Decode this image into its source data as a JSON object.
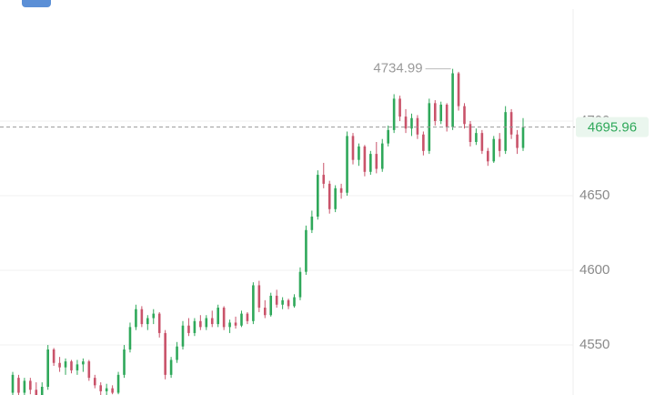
{
  "chart_data": {
    "type": "candlestick",
    "ylim": [
      4516.5,
      4781.1
    ],
    "yticks": [
      4550,
      4600,
      4650,
      4700
    ],
    "grid": true,
    "up_color": "#2fa85a",
    "down_color": "#c9536a",
    "ohlc": [
      [
        4518,
        4532,
        4515,
        4530
      ],
      [
        4528,
        4530,
        4516,
        4518
      ],
      [
        4518,
        4528,
        4515,
        4526
      ],
      [
        4526,
        4528,
        4517,
        4520
      ],
      [
        4520,
        4525,
        4514,
        4516
      ],
      [
        4516,
        4525,
        4514,
        4522
      ],
      [
        4522,
        4550,
        4520,
        4547
      ],
      [
        4547,
        4548,
        4536,
        4538
      ],
      [
        4538,
        4542,
        4532,
        4535
      ],
      [
        4535,
        4541,
        4530,
        4539
      ],
      [
        4539,
        4540,
        4531,
        4533
      ],
      [
        4533,
        4540,
        4530,
        4537
      ],
      [
        4537,
        4541,
        4532,
        4539
      ],
      [
        4539,
        4540,
        4526,
        4528
      ],
      [
        4528,
        4530,
        4521,
        4523
      ],
      [
        4523,
        4525,
        4516,
        4519
      ],
      [
        4519,
        4524,
        4516,
        4521
      ],
      [
        4521,
        4523,
        4517,
        4518
      ],
      [
        4518,
        4532,
        4517,
        4530
      ],
      [
        4530,
        4550,
        4528,
        4547
      ],
      [
        4547,
        4565,
        4545,
        4562
      ],
      [
        4562,
        4577,
        4560,
        4574
      ],
      [
        4574,
        4576,
        4562,
        4564
      ],
      [
        4564,
        4570,
        4560,
        4568
      ],
      [
        4568,
        4574,
        4564,
        4571
      ],
      [
        4571,
        4572,
        4555,
        4558
      ],
      [
        4558,
        4560,
        4527,
        4530
      ],
      [
        4530,
        4542,
        4528,
        4540
      ],
      [
        4540,
        4552,
        4538,
        4549
      ],
      [
        4549,
        4566,
        4547,
        4563
      ],
      [
        4563,
        4568,
        4556,
        4558
      ],
      [
        4558,
        4568,
        4556,
        4566
      ],
      [
        4566,
        4570,
        4560,
        4562
      ],
      [
        4562,
        4570,
        4560,
        4568
      ],
      [
        4568,
        4573,
        4562,
        4564
      ],
      [
        4564,
        4577,
        4562,
        4575
      ],
      [
        4575,
        4576,
        4560,
        4562
      ],
      [
        4562,
        4567,
        4558,
        4565
      ],
      [
        4565,
        4569,
        4561,
        4563
      ],
      [
        4563,
        4573,
        4562,
        4571
      ],
      [
        4571,
        4572,
        4564,
        4566
      ],
      [
        4566,
        4592,
        4564,
        4590
      ],
      [
        4590,
        4593,
        4572,
        4575
      ],
      [
        4575,
        4580,
        4568,
        4570
      ],
      [
        4570,
        4585,
        4569,
        4583
      ],
      [
        4583,
        4587,
        4575,
        4577
      ],
      [
        4577,
        4582,
        4574,
        4580
      ],
      [
        4580,
        4581,
        4574,
        4576
      ],
      [
        4576,
        4584,
        4575,
        4582
      ],
      [
        4582,
        4602,
        4580,
        4599
      ],
      [
        4599,
        4630,
        4597,
        4627
      ],
      [
        4627,
        4640,
        4625,
        4636
      ],
      [
        4636,
        4667,
        4634,
        4664
      ],
      [
        4664,
        4672,
        4655,
        4658
      ],
      [
        4658,
        4660,
        4638,
        4641
      ],
      [
        4641,
        4657,
        4639,
        4655
      ],
      [
        4655,
        4658,
        4648,
        4652
      ],
      [
        4652,
        4693,
        4650,
        4690
      ],
      [
        4690,
        4692,
        4671,
        4674
      ],
      [
        4674,
        4685,
        4670,
        4683
      ],
      [
        4683,
        4684,
        4663,
        4666
      ],
      [
        4666,
        4680,
        4664,
        4678
      ],
      [
        4678,
        4686,
        4665,
        4668
      ],
      [
        4668,
        4688,
        4666,
        4685
      ],
      [
        4685,
        4697,
        4683,
        4694
      ],
      [
        4694,
        4718,
        4692,
        4715
      ],
      [
        4715,
        4717,
        4700,
        4703
      ],
      [
        4703,
        4708,
        4692,
        4695
      ],
      [
        4695,
        4705,
        4690,
        4702
      ],
      [
        4702,
        4704,
        4688,
        4691
      ],
      [
        4691,
        4693,
        4677,
        4680
      ],
      [
        4680,
        4715,
        4678,
        4712
      ],
      [
        4712,
        4714,
        4697,
        4700
      ],
      [
        4700,
        4713,
        4698,
        4711
      ],
      [
        4711,
        4712,
        4693,
        4696
      ],
      [
        4696,
        4734.99,
        4694,
        4732
      ],
      [
        4732,
        4733,
        4707,
        4710
      ],
      [
        4710,
        4712,
        4695,
        4698
      ],
      [
        4698,
        4700,
        4683,
        4686
      ],
      [
        4686,
        4695,
        4684,
        4692
      ],
      [
        4692,
        4694,
        4678,
        4680
      ],
      [
        4680,
        4682,
        4670,
        4673
      ],
      [
        4673,
        4690,
        4672,
        4688
      ],
      [
        4688,
        4692,
        4676,
        4680
      ],
      [
        4680,
        4710,
        4678,
        4706
      ],
      [
        4706,
        4708,
        4688,
        4691
      ],
      [
        4691,
        4694,
        4678,
        4682
      ],
      [
        4682,
        4702,
        4680,
        4695.96
      ]
    ]
  }
}
